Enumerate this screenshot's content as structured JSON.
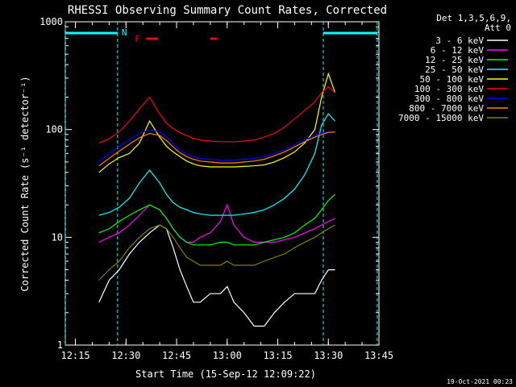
{
  "chart_data": {
    "type": "line",
    "title": "RHESSI Observing Summary Count Rates, Corrected",
    "xlabel": "Start Time (15-Sep-12 12:09:22)",
    "ylabel": "Corrected Count Rate (s⁻¹ detector⁻¹)",
    "yscale": "log",
    "ylim": [
      1,
      1000
    ],
    "xlim_minutes": [
      12.0,
      100.0
    ],
    "xticks": [
      {
        "label": "12:15",
        "t": 15
      },
      {
        "label": "12:30",
        "t": 30
      },
      {
        "label": "12:45",
        "t": 45
      },
      {
        "label": "13:00",
        "t": 60
      },
      {
        "label": "13:15",
        "t": 75
      },
      {
        "label": "13:30",
        "t": 90
      },
      {
        "label": "13:45",
        "t": 105
      }
    ],
    "yticks": [
      {
        "label": "1",
        "v": 1
      },
      {
        "label": "10",
        "v": 10
      },
      {
        "label": "100",
        "v": 100
      },
      {
        "label": "1000",
        "v": 1000
      }
    ],
    "legend_header": [
      "Det 1,3,5,6,9,",
      "Att 0"
    ],
    "legend_position": "right",
    "footer_date": "19-Oct-2021 00:23",
    "annotations": {
      "night_label": "N",
      "flare_label": "F",
      "night_marker_color": "#00ffff",
      "flare_marker_color": "#ff0000",
      "night_intervals": [
        [
          12.0,
          27.5
        ],
        [
          88.5,
          104.5
        ]
      ],
      "flare_intervals": [
        [
          36.0,
          39.5
        ],
        [
          55.0,
          57.0
        ]
      ]
    },
    "series": [
      {
        "name": "3 - 6 keV",
        "color": "#ffffff",
        "x": [
          22,
          25,
          28,
          31,
          34,
          37,
          40,
          42,
          44,
          46,
          48,
          50,
          52,
          55,
          58,
          60,
          62,
          65,
          68,
          71,
          74,
          77,
          80,
          83,
          86,
          88,
          90,
          92
        ],
        "y": [
          2.5,
          4,
          5,
          7,
          9,
          11,
          13,
          12,
          8,
          5,
          3.5,
          2.5,
          2.5,
          3,
          3,
          3.5,
          2.5,
          2,
          1.5,
          1.5,
          2,
          2.5,
          3,
          3,
          3,
          4,
          5,
          5
        ]
      },
      {
        "name": "6 - 12 keV",
        "color": "#ff00ff",
        "x": [
          22,
          25,
          28,
          31,
          34,
          37,
          40,
          42,
          44,
          46,
          48,
          50,
          52,
          55,
          58,
          60,
          62,
          65,
          68,
          71,
          74,
          77,
          80,
          83,
          86,
          88,
          90,
          92
        ],
        "y": [
          9,
          10,
          11,
          13,
          16,
          20,
          18,
          15,
          12,
          10,
          9,
          9,
          10,
          11,
          14,
          20,
          13,
          10,
          9,
          9,
          9,
          9.5,
          10,
          11,
          12,
          13,
          14,
          15
        ]
      },
      {
        "name": "12 - 25 keV",
        "color": "#00ff00",
        "x": [
          22,
          25,
          28,
          31,
          34,
          37,
          40,
          42,
          44,
          46,
          48,
          50,
          52,
          55,
          58,
          60,
          62,
          65,
          68,
          71,
          74,
          77,
          80,
          83,
          86,
          88,
          90,
          92
        ],
        "y": [
          11,
          12,
          14,
          16,
          18,
          20,
          18,
          15,
          12,
          10,
          9,
          8.5,
          8.5,
          8.5,
          9,
          9,
          8.5,
          8.5,
          8.5,
          9,
          9.5,
          10,
          11,
          13,
          15,
          18,
          22,
          25
        ]
      },
      {
        "name": "25 - 50 keV",
        "color": "#00ffff",
        "x": [
          22,
          25,
          28,
          31,
          34,
          37,
          40,
          42,
          44,
          46,
          48,
          50,
          52,
          55,
          58,
          60,
          62,
          65,
          68,
          71,
          74,
          77,
          80,
          83,
          86,
          88,
          90,
          92
        ],
        "y": [
          16,
          17,
          19,
          23,
          32,
          42,
          32,
          25,
          21,
          19,
          18,
          17,
          16.5,
          16,
          16,
          16,
          16,
          16.5,
          17,
          18,
          20,
          23,
          28,
          38,
          60,
          110,
          140,
          120
        ]
      },
      {
        "name": "50 - 100 keV",
        "color": "#ffff00",
        "x": [
          22,
          25,
          28,
          31,
          34,
          37,
          40,
          42,
          44,
          46,
          48,
          50,
          52,
          55,
          58,
          60,
          62,
          65,
          68,
          71,
          74,
          77,
          80,
          83,
          86,
          88,
          90,
          92
        ],
        "y": [
          40,
          48,
          55,
          60,
          75,
          120,
          85,
          70,
          62,
          56,
          51,
          48,
          46,
          45,
          45,
          45,
          45,
          45.5,
          46,
          47,
          50,
          55,
          62,
          75,
          100,
          200,
          330,
          220
        ]
      },
      {
        "name": "100 - 300 keV",
        "color": "#ff0000",
        "x": [
          22,
          25,
          28,
          31,
          34,
          37,
          40,
          42,
          44,
          46,
          48,
          50,
          52,
          55,
          58,
          60,
          62,
          65,
          68,
          71,
          74,
          77,
          80,
          83,
          86,
          88,
          90,
          92
        ],
        "y": [
          75,
          82,
          95,
          120,
          155,
          200,
          140,
          115,
          102,
          94,
          88,
          83,
          80,
          78,
          77,
          77,
          77,
          78,
          80,
          85,
          92,
          105,
          125,
          150,
          180,
          220,
          250,
          220
        ]
      },
      {
        "name": "300 - 800 keV",
        "color": "#0000ff",
        "x": [
          22,
          25,
          28,
          31,
          34,
          37,
          40,
          42,
          44,
          46,
          48,
          50,
          52,
          55,
          58,
          60,
          62,
          65,
          68,
          71,
          74,
          77,
          80,
          83,
          86,
          88,
          90,
          92
        ],
        "y": [
          50,
          60,
          70,
          80,
          92,
          100,
          95,
          85,
          74,
          65,
          59,
          56,
          54,
          53,
          52,
          52,
          52,
          53,
          54,
          56,
          60,
          65,
          72,
          80,
          88,
          93,
          95,
          95
        ]
      },
      {
        "name": "800 - 7000 keV",
        "color": "#ff8000",
        "x": [
          22,
          25,
          28,
          31,
          34,
          37,
          40,
          42,
          44,
          46,
          48,
          50,
          52,
          55,
          58,
          60,
          62,
          65,
          68,
          71,
          74,
          77,
          80,
          83,
          86,
          88,
          90,
          92
        ],
        "y": [
          46,
          54,
          63,
          73,
          84,
          92,
          88,
          79,
          69,
          61,
          56,
          53,
          51,
          50,
          49,
          49,
          49,
          50,
          51,
          53,
          57,
          62,
          69,
          77,
          85,
          90,
          94,
          95
        ]
      },
      {
        "name": "7000 - 15000 keV",
        "color": "#808000",
        "x": [
          22,
          25,
          28,
          31,
          34,
          37,
          40,
          42,
          44,
          46,
          48,
          50,
          52,
          55,
          58,
          60,
          62,
          65,
          68,
          71,
          74,
          77,
          80,
          83,
          86,
          88,
          90,
          92
        ],
        "y": [
          4,
          5,
          6,
          8,
          10,
          12,
          13,
          12,
          10,
          8,
          6.5,
          6,
          5.5,
          5.5,
          5.5,
          6,
          5.5,
          5.5,
          5.5,
          6,
          6.5,
          7,
          8,
          9,
          10,
          11,
          12,
          13
        ]
      }
    ]
  }
}
